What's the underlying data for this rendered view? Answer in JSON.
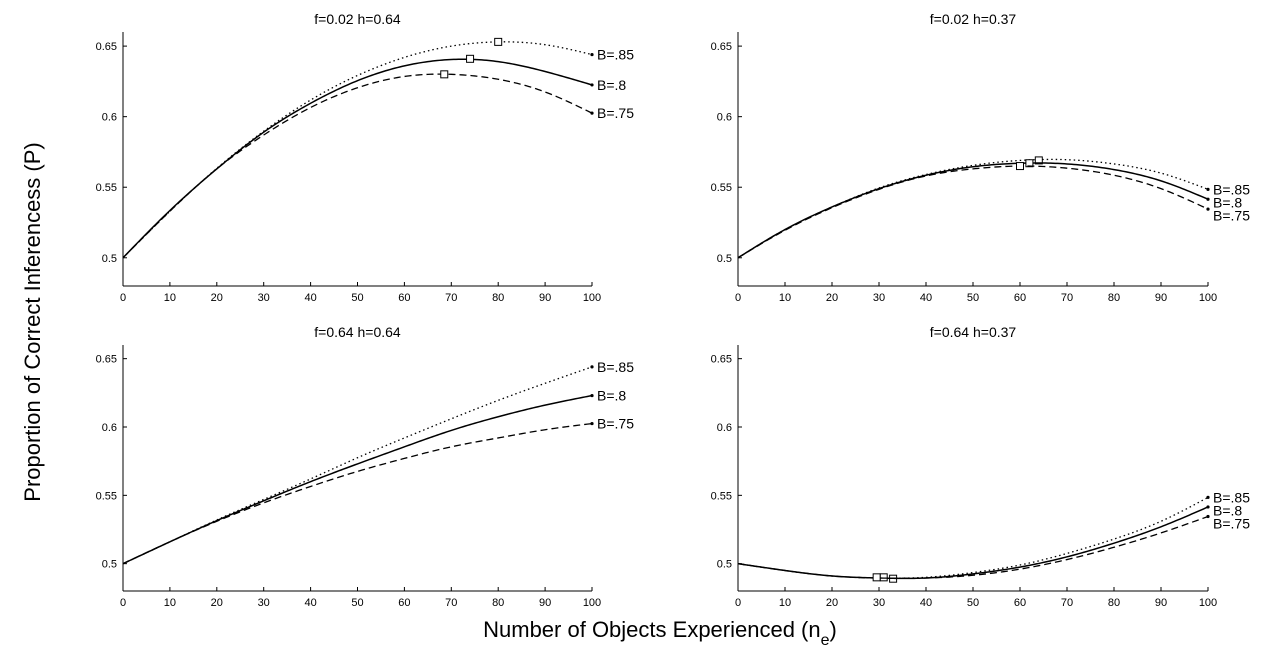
{
  "figure": {
    "ylabel": "Proportion of Correct Inferencess (P)",
    "xlabel_main": "Number of Objects Experienced (n",
    "xlabel_sub": "e",
    "xlabel_close": ")"
  },
  "chart_data": [
    {
      "type": "line",
      "title": "f=0.02  h=0.64",
      "xlim": [
        0,
        100
      ],
      "ylim": [
        0.48,
        0.66
      ],
      "xticks": [
        0,
        10,
        20,
        30,
        40,
        50,
        60,
        70,
        80,
        90,
        100
      ],
      "yticks": [
        0.5,
        0.55,
        0.6,
        0.65
      ],
      "ytick_labels": [
        "0.5",
        "0.55",
        "0.6",
        "0.65"
      ],
      "x": [
        0,
        10,
        20,
        30,
        40,
        50,
        60,
        70,
        80,
        90,
        100
      ],
      "series": [
        {
          "name": "B=.85",
          "style": "dotted",
          "values": [
            0.5,
            0.533,
            0.5634,
            0.5897,
            0.6118,
            0.6292,
            0.642,
            0.65,
            0.653,
            0.651,
            0.644
          ],
          "peak": [
            80,
            0.653
          ]
        },
        {
          "name": "B=.8",
          "style": "solid",
          "values": [
            0.5,
            0.5335,
            0.563,
            0.589,
            0.6095,
            0.6255,
            0.636,
            0.6405,
            0.639,
            0.632,
            0.6225
          ],
          "peak": [
            74,
            0.641
          ]
        },
        {
          "name": "B=.75",
          "style": "dashed",
          "values": [
            0.5,
            0.533,
            0.563,
            0.587,
            0.6065,
            0.6205,
            0.6285,
            0.63,
            0.6265,
            0.6175,
            0.6025
          ],
          "peak": [
            68.5,
            0.63
          ]
        }
      ]
    },
    {
      "type": "line",
      "title": "f=0.02  h=0.37",
      "xlim": [
        0,
        100
      ],
      "ylim": [
        0.48,
        0.66
      ],
      "xticks": [
        0,
        10,
        20,
        30,
        40,
        50,
        60,
        70,
        80,
        90,
        100
      ],
      "yticks": [
        0.5,
        0.55,
        0.6,
        0.65
      ],
      "ytick_labels": [
        "0.5",
        "0.55",
        "0.6",
        "0.65"
      ],
      "x": [
        0,
        10,
        20,
        30,
        40,
        50,
        60,
        70,
        80,
        90,
        100
      ],
      "series": [
        {
          "name": "B=.85",
          "style": "dotted",
          "values": [
            0.5,
            0.52,
            0.536,
            0.5495,
            0.559,
            0.5655,
            0.569,
            0.5695,
            0.5665,
            0.56,
            0.5485
          ],
          "peak": [
            64,
            0.569
          ]
        },
        {
          "name": "B=.8",
          "style": "solid",
          "values": [
            0.5,
            0.52,
            0.536,
            0.549,
            0.5585,
            0.5645,
            0.567,
            0.5665,
            0.5625,
            0.5545,
            0.5415
          ],
          "peak": [
            62,
            0.567
          ]
        },
        {
          "name": "B=.75",
          "style": "dashed",
          "values": [
            0.5,
            0.5195,
            0.5355,
            0.5485,
            0.558,
            0.563,
            0.565,
            0.5635,
            0.5585,
            0.549,
            0.5345
          ],
          "peak": [
            60,
            0.565
          ]
        }
      ]
    },
    {
      "type": "line",
      "title": "f=0.64  h=0.64",
      "xlim": [
        0,
        100
      ],
      "ylim": [
        0.48,
        0.66
      ],
      "xticks": [
        0,
        10,
        20,
        30,
        40,
        50,
        60,
        70,
        80,
        90,
        100
      ],
      "yticks": [
        0.5,
        0.55,
        0.6,
        0.65
      ],
      "ytick_labels": [
        "0.5",
        "0.55",
        "0.6",
        "0.65"
      ],
      "x": [
        0,
        10,
        20,
        30,
        40,
        50,
        60,
        70,
        80,
        90,
        100
      ],
      "series": [
        {
          "name": "B=.85",
          "style": "dotted",
          "values": [
            0.5,
            0.516,
            0.532,
            0.547,
            0.562,
            0.5775,
            0.592,
            0.606,
            0.6195,
            0.632,
            0.644
          ]
        },
        {
          "name": "B=.8",
          "style": "solid",
          "values": [
            0.5,
            0.516,
            0.5315,
            0.546,
            0.56,
            0.573,
            0.5855,
            0.5975,
            0.6075,
            0.616,
            0.623
          ]
        },
        {
          "name": "B=.75",
          "style": "dashed",
          "values": [
            0.5,
            0.516,
            0.531,
            0.5445,
            0.5565,
            0.5675,
            0.577,
            0.5855,
            0.592,
            0.598,
            0.6025
          ]
        }
      ]
    },
    {
      "type": "line",
      "title": "f=0.64  h=0.37",
      "xlim": [
        0,
        100
      ],
      "ylim": [
        0.48,
        0.66
      ],
      "xticks": [
        0,
        10,
        20,
        30,
        40,
        50,
        60,
        70,
        80,
        90,
        100
      ],
      "yticks": [
        0.5,
        0.55,
        0.6,
        0.65
      ],
      "ytick_labels": [
        "0.5",
        "0.55",
        "0.6",
        "0.65"
      ],
      "x": [
        0,
        10,
        20,
        30,
        40,
        50,
        60,
        70,
        80,
        90,
        100
      ],
      "series": [
        {
          "name": "B=.85",
          "style": "dotted",
          "values": [
            0.5,
            0.495,
            0.491,
            0.4895,
            0.49,
            0.4935,
            0.499,
            0.5075,
            0.518,
            0.531,
            0.5485
          ],
          "min": [
            33,
            0.489
          ]
        },
        {
          "name": "B=.8",
          "style": "solid",
          "values": [
            0.5,
            0.495,
            0.491,
            0.4895,
            0.4895,
            0.4925,
            0.4975,
            0.505,
            0.515,
            0.527,
            0.5415
          ],
          "min": [
            31,
            0.49
          ]
        },
        {
          "name": "B=.75",
          "style": "dashed",
          "values": [
            0.5,
            0.495,
            0.491,
            0.4895,
            0.4895,
            0.4915,
            0.496,
            0.503,
            0.512,
            0.5225,
            0.5345
          ],
          "min": [
            29.5,
            0.49
          ]
        }
      ]
    }
  ]
}
